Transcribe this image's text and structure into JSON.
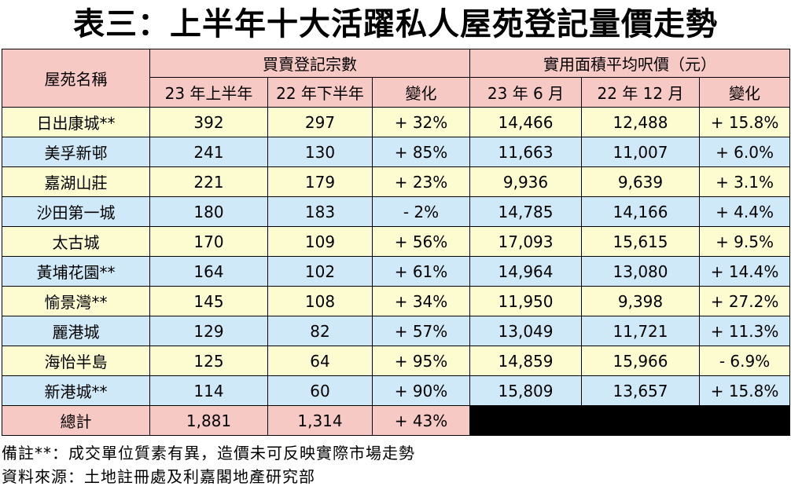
{
  "title": "表三：上半年十大活躍私人屋苑登記量價走勢",
  "headers": {
    "estate": "屋苑名稱",
    "group_volume": "買賣登記宗數",
    "group_price": "實用面積平均呎價（元）",
    "vol_h1_23": "23 年上半年",
    "vol_h2_22": "22 年下半年",
    "vol_change": "變化",
    "price_jun_23": "23 年 6 月",
    "price_dec_22": "22 年 12 月",
    "price_change": "變化"
  },
  "rows": [
    {
      "name": "日出康城**",
      "v1": "392",
      "v2": "297",
      "vc": "+ 32%",
      "p1": "14,466",
      "p2": "12,488",
      "pc": "+ 15.8%"
    },
    {
      "name": "美孚新邨",
      "v1": "241",
      "v2": "130",
      "vc": "+ 85%",
      "p1": "11,663",
      "p2": "11,007",
      "pc": "+ 6.0%"
    },
    {
      "name": "嘉湖山莊",
      "v1": "221",
      "v2": "179",
      "vc": "+ 23%",
      "p1": "9,936",
      "p2": "9,639",
      "pc": "+ 3.1%"
    },
    {
      "name": "沙田第一城",
      "v1": "180",
      "v2": "183",
      "vc": "- 2%",
      "p1": "14,785",
      "p2": "14,166",
      "pc": "+ 4.4%"
    },
    {
      "name": "太古城",
      "v1": "170",
      "v2": "109",
      "vc": "+ 56%",
      "p1": "17,093",
      "p2": "15,615",
      "pc": "+ 9.5%"
    },
    {
      "name": "黃埔花園**",
      "v1": "164",
      "v2": "102",
      "vc": "+ 61%",
      "p1": "14,964",
      "p2": "13,080",
      "pc": "+ 14.4%"
    },
    {
      "name": "愉景灣**",
      "v1": "145",
      "v2": "108",
      "vc": "+ 34%",
      "p1": "11,950",
      "p2": "9,398",
      "pc": "+ 27.2%"
    },
    {
      "name": "麗港城",
      "v1": "129",
      "v2": "82",
      "vc": "+ 57%",
      "p1": "13,049",
      "p2": "11,721",
      "pc": "+ 11.3%"
    },
    {
      "name": "海怡半島",
      "v1": "125",
      "v2": "64",
      "vc": "+ 95%",
      "p1": "14,859",
      "p2": "15,966",
      "pc": "- 6.9%"
    },
    {
      "name": "新港城**",
      "v1": "114",
      "v2": "60",
      "vc": "+ 90%",
      "p1": "15,809",
      "p2": "13,657",
      "pc": "+ 15.8%"
    }
  ],
  "total": {
    "name": "總計",
    "v1": "1,881",
    "v2": "1,314",
    "vc": "+ 43%"
  },
  "notes": {
    "remark": "備註**：成交單位質素有異，造價未可反映實際市場走勢",
    "source": "資料來源：土地註冊處及利嘉閣地產研究部"
  },
  "colors": {
    "header_bg": "#f7c9c5",
    "row_yellow": "#fdfbd0",
    "row_blue": "#cfe9f8",
    "blackout": "#000000"
  }
}
